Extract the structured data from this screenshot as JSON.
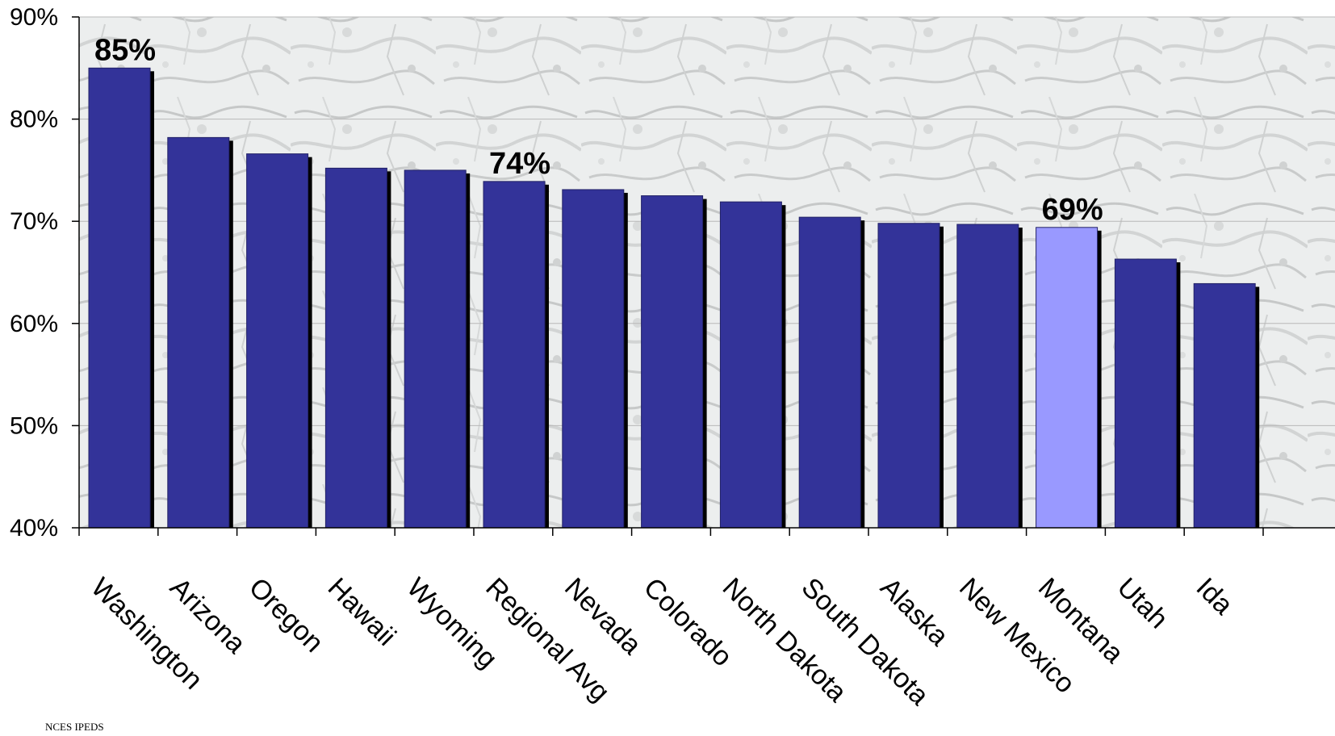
{
  "chart_data": {
    "type": "bar",
    "categories": [
      "Washington",
      "Arizona",
      "Oregon",
      "Hawaii",
      "Wyoming",
      "Regional Avg",
      "Nevada",
      "Colorado",
      "North Dakota",
      "South Dakota",
      "Alaska",
      "New Mexico",
      "Montana",
      "Utah",
      "Ida"
    ],
    "values": [
      85,
      78.2,
      76.6,
      75.2,
      75.0,
      73.9,
      73.1,
      72.5,
      71.9,
      70.4,
      69.8,
      69.7,
      69.4,
      66.3,
      63.9
    ],
    "ylim": [
      40,
      90
    ],
    "yticks": [
      "40%",
      "50%",
      "60%",
      "70%",
      "80%",
      "90%"
    ],
    "grid": true,
    "bar_color": "#333399",
    "highlight_color": "#9999ff",
    "highlight_category": "Montana",
    "shadow_color": "#000000",
    "data_labels": [
      {
        "category": "Washington",
        "text": "85%"
      },
      {
        "category": "Regional Avg",
        "text": "74%"
      },
      {
        "category": "Montana",
        "text": "69%"
      }
    ]
  },
  "source_note": "NCES IPEDS"
}
